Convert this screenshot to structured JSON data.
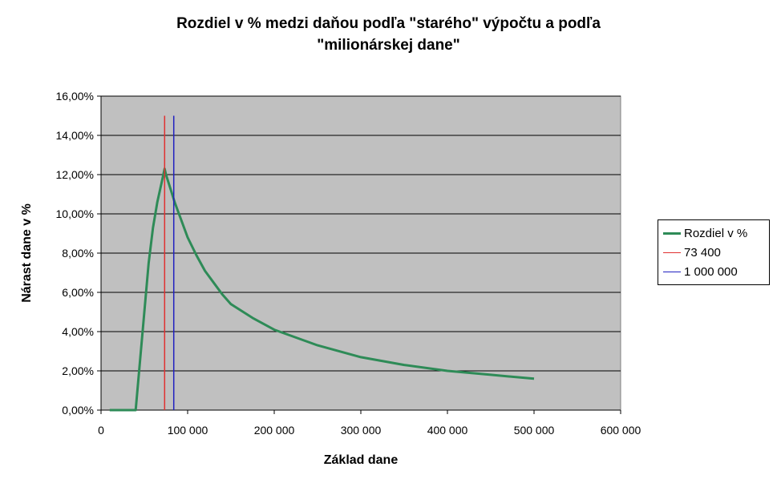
{
  "chart_data": {
    "type": "line",
    "title_lines": [
      "Rozdiel v % medzi daňou podľa \"starého\" výpočtu a podľa",
      "\"milionárskej dane\""
    ],
    "xlabel": "Základ dane",
    "ylabel": "Nárast dane v %",
    "xlim": [
      0,
      600000
    ],
    "ylim": [
      0,
      0.16
    ],
    "x_ticks": [
      0,
      100000,
      200000,
      300000,
      400000,
      500000,
      600000
    ],
    "x_tick_labels": [
      "0",
      "100 000",
      "200 000",
      "300 000",
      "400 000",
      "500 000",
      "600 000"
    ],
    "y_ticks": [
      0,
      0.02,
      0.04,
      0.06,
      0.08,
      0.1,
      0.12,
      0.14,
      0.16
    ],
    "y_tick_labels": [
      "0,00%",
      "2,00%",
      "4,00%",
      "6,00%",
      "8,00%",
      "10,00%",
      "12,00%",
      "14,00%",
      "16,00%"
    ],
    "plot_background": "#c0c0c0",
    "grid": "horizontal",
    "legend_position": "right",
    "series": [
      {
        "name": "Rozdiel v %",
        "color": "#2e8b57",
        "x": [
          10000,
          20000,
          30000,
          40000,
          45000,
          50000,
          55000,
          60000,
          65000,
          70000,
          73400,
          75000,
          80000,
          85000,
          90000,
          100000,
          110000,
          120000,
          130000,
          140000,
          150000,
          175000,
          200000,
          250000,
          300000,
          350000,
          400000,
          450000,
          500000
        ],
        "y": [
          0,
          0,
          0,
          0,
          0.025,
          0.05,
          0.075,
          0.093,
          0.106,
          0.116,
          0.123,
          0.12,
          0.113,
          0.106,
          0.1,
          0.088,
          0.079,
          0.071,
          0.065,
          0.059,
          0.054,
          0.047,
          0.041,
          0.033,
          0.027,
          0.023,
          0.02,
          0.018,
          0.016
        ]
      },
      {
        "name": "73 400",
        "color": "#e03030",
        "x": [
          73400,
          73400
        ],
        "y": [
          0,
          0.15
        ]
      },
      {
        "name": "1 000 000",
        "color": "#2020c0",
        "x": [
          84000,
          84000
        ],
        "y": [
          0,
          0.15
        ]
      }
    ]
  }
}
